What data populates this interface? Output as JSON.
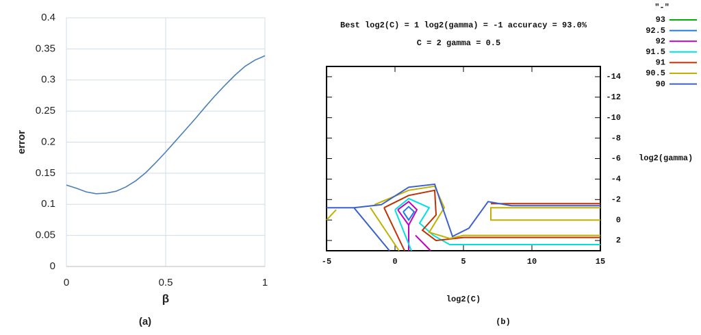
{
  "chart_data": [
    {
      "type": "line",
      "caption": "(a)",
      "xlabel": "β",
      "ylabel": "error",
      "x": [
        0,
        0.05,
        0.1,
        0.15,
        0.2,
        0.25,
        0.3,
        0.35,
        0.4,
        0.45,
        0.5,
        0.55,
        0.6,
        0.65,
        0.7,
        0.75,
        0.8,
        0.85,
        0.9,
        0.95,
        1
      ],
      "values": [
        0.131,
        0.126,
        0.12,
        0.117,
        0.118,
        0.121,
        0.128,
        0.138,
        0.151,
        0.167,
        0.184,
        0.202,
        0.22,
        0.238,
        0.257,
        0.275,
        0.292,
        0.308,
        0.322,
        0.332,
        0.339
      ],
      "color": "#4a7ebb",
      "xlim": [
        0,
        1
      ],
      "xticks": [
        0,
        0.5,
        1
      ],
      "ylim": [
        0,
        0.4
      ],
      "yticks": [
        0,
        0.05,
        0.1,
        0.15,
        0.2,
        0.25,
        0.3,
        0.35,
        0.4
      ],
      "grid": true
    },
    {
      "type": "contour",
      "caption": "(b)",
      "title": "Best log2(C) = 1  log2(gamma) = -1  accuracy = 93.0%",
      "subtitle": "C = 2  gamma = 0.5",
      "xlabel": "log2(C)",
      "ylabel": "log2(gamma)",
      "legend_title": "\"-\"",
      "xlim": [
        -5,
        15
      ],
      "xticks": [
        -5,
        0,
        5,
        10,
        15
      ],
      "ylim": [
        -15,
        3
      ],
      "yticks": [
        -14,
        -12,
        -10,
        -8,
        -6,
        -4,
        -2,
        0,
        2
      ],
      "yreverse": true,
      "series": [
        {
          "name": "93",
          "color": "#00b000",
          "x": [],
          "values": []
        },
        {
          "name": "92.5",
          "color": "#1e78e6",
          "x": [
            0.6,
            1,
            1.4,
            1,
            0.6
          ],
          "values": [
            -0.8,
            -1.3,
            -0.8,
            0,
            -0.8
          ]
        },
        {
          "name": "92",
          "color": "#c000c0",
          "x": [
            0.2,
            1,
            1.6,
            1,
            0.2,
            null,
            1,
            1,
            null,
            1.5,
            2.6
          ],
          "values": [
            -1,
            -1.8,
            -1,
            0.5,
            -1,
            null,
            0.5,
            3,
            null,
            1.5,
            3
          ]
        },
        {
          "name": "91.5",
          "color": "#00e0e0",
          "x": [
            0,
            1,
            2.5,
            1.8,
            2.8,
            4,
            15,
            null,
            0,
            1.2
          ],
          "values": [
            -1,
            -2.1,
            -1.2,
            0.3,
            1.5,
            2.4,
            2.4,
            null,
            -1,
            3
          ]
        },
        {
          "name": "91",
          "color": "#c03000",
          "x": [
            -0.8,
            1,
            2.9,
            3,
            2,
            3,
            5,
            15,
            null,
            -0.8,
            0.7,
            null,
            15,
            7
          ],
          "values": [
            -1.2,
            -2.4,
            -2.9,
            -0.5,
            1,
            2,
            1.7,
            1.7,
            null,
            -1.2,
            3,
            null,
            -1.6,
            -1.6
          ]
        },
        {
          "name": "90.5",
          "color": "#c0b000",
          "x": [
            -5,
            -4.3,
            null,
            -1.8,
            0.3,
            null,
            -1.5,
            1,
            2.9,
            3.6,
            2.5,
            4,
            5,
            15,
            null,
            15,
            7,
            7,
            15
          ],
          "values": [
            0,
            -1,
            null,
            -1.2,
            3,
            null,
            -1.5,
            -2.9,
            -3.3,
            -1.2,
            1.2,
            1.8,
            1.5,
            1.5,
            null,
            -1.2,
            -1.2,
            0,
            0
          ]
        },
        {
          "name": "90",
          "color": "#3a5fd0",
          "x": [
            -5,
            -3,
            -1,
            1,
            2.9,
            3.4,
            4.2,
            5.4,
            6.8,
            8.5,
            15,
            null,
            -3,
            -0.4
          ],
          "values": [
            -1.2,
            -1.2,
            -1.5,
            -3.2,
            -3.5,
            -1.5,
            1.6,
            0.8,
            -1.8,
            -1.4,
            -1.4,
            null,
            -1.2,
            3
          ]
        }
      ]
    }
  ]
}
